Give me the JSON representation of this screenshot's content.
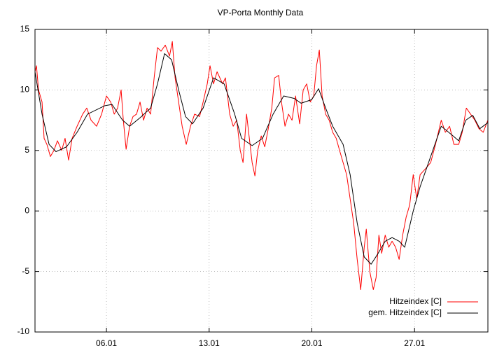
{
  "chart_data": {
    "type": "line",
    "title": "VP-Porta Monthly Data",
    "xlim": [
      1.13,
      32
    ],
    "ylim": [
      -10,
      15
    ],
    "xticks": [
      {
        "value": 6,
        "label": "06.01"
      },
      {
        "value": 13,
        "label": "13.01"
      },
      {
        "value": 20,
        "label": "20.01"
      },
      {
        "value": 27,
        "label": "27.01"
      }
    ],
    "yticks": [
      -10,
      -5,
      0,
      5,
      10,
      15
    ],
    "grid": true,
    "legend": "lower right",
    "series": [
      {
        "name": "Hitzeindex [C]",
        "color": "#ff0000",
        "x": [
          1.13,
          1.23,
          1.37,
          1.61,
          1.75,
          1.94,
          2.18,
          2.42,
          2.66,
          2.95,
          3.18,
          3.42,
          3.66,
          4.0,
          4.38,
          4.66,
          4.95,
          5.33,
          5.67,
          6.0,
          6.29,
          6.53,
          6.76,
          7.0,
          7.15,
          7.34,
          7.58,
          7.81,
          8.05,
          8.29,
          8.53,
          8.77,
          9.01,
          9.25,
          9.48,
          9.72,
          10.01,
          10.3,
          10.49,
          10.68,
          10.92,
          11.16,
          11.44,
          11.73,
          12.01,
          12.35,
          12.59,
          12.87,
          13.06,
          13.3,
          13.54,
          13.92,
          14.11,
          14.4,
          14.64,
          14.88,
          15.12,
          15.31,
          15.55,
          15.74,
          15.93,
          16.12,
          16.31,
          16.55,
          16.79,
          17.03,
          17.27,
          17.46,
          17.74,
          17.93,
          18.17,
          18.41,
          18.65,
          18.89,
          19.17,
          19.41,
          19.65,
          19.89,
          20.13,
          20.32,
          20.51,
          20.7,
          20.94,
          21.18,
          21.42,
          21.66,
          21.89,
          22.13,
          22.37,
          22.61,
          22.85,
          23.09,
          23.33,
          23.57,
          23.71,
          23.95,
          24.19,
          24.38,
          24.57,
          24.76,
          25.0,
          25.24,
          25.47,
          25.71,
          25.95,
          26.19,
          26.43,
          26.67,
          26.91,
          27.15,
          27.38,
          27.76,
          28.1,
          28.43,
          28.82,
          29.1,
          29.39,
          29.68,
          30.01,
          30.25,
          30.53,
          30.82,
          31.11,
          31.39,
          31.68,
          32.0
        ],
        "values": [
          11.5,
          12,
          10,
          9,
          6,
          5.5,
          4.5,
          5,
          5.8,
          5,
          6,
          4.2,
          6,
          7,
          8,
          8.5,
          7.5,
          7,
          8,
          9.5,
          9,
          8,
          8.5,
          10,
          7.5,
          5.1,
          7,
          7.8,
          8,
          9,
          7.5,
          8.5,
          8,
          11,
          13.5,
          13.2,
          13.7,
          12.8,
          14,
          11,
          9,
          7,
          5.5,
          7,
          8,
          7.8,
          9,
          10.5,
          12,
          10.5,
          11.5,
          10.5,
          11,
          8,
          7,
          7.5,
          5,
          4,
          8,
          6,
          4,
          2.9,
          5,
          6.2,
          5.3,
          6.8,
          8.5,
          11,
          11.2,
          9,
          7,
          8,
          7.5,
          9.5,
          7.2,
          10,
          10.5,
          9,
          9.5,
          12,
          13.3,
          9.5,
          8,
          7.5,
          6.5,
          6,
          5,
          4,
          3,
          1,
          -1,
          -4,
          -6.5,
          -3,
          -1.5,
          -5,
          -6.5,
          -5.5,
          -2,
          -3.5,
          -2,
          -3,
          -2.5,
          -3,
          -4,
          -2,
          -0.5,
          0.5,
          3,
          1,
          3,
          3.5,
          4,
          5.5,
          7.5,
          6.5,
          7,
          5.5,
          5.5,
          6.5,
          8.5,
          8,
          7.5,
          6.8,
          6.5,
          7.5
        ]
      },
      {
        "name": "gem. Hitzeindex [C]",
        "color": "#000000",
        "x": [
          1.13,
          1.61,
          2.09,
          2.56,
          3.28,
          4.0,
          4.71,
          5.9,
          6.38,
          7.1,
          7.58,
          8.29,
          9.01,
          9.48,
          9.96,
          10.44,
          10.92,
          11.39,
          11.87,
          12.59,
          13.3,
          14.02,
          14.74,
          15.21,
          15.93,
          16.64,
          17.36,
          18.08,
          18.79,
          19.27,
          19.99,
          20.46,
          20.94,
          21.42,
          22.13,
          22.61,
          23.09,
          23.57,
          24.04,
          24.52,
          25.0,
          25.47,
          25.95,
          26.33,
          26.91,
          27.38,
          28.1,
          28.82,
          29.53,
          30.01,
          30.49,
          30.97,
          31.45,
          32.0
        ],
        "values": [
          11.5,
          8,
          5.5,
          4.9,
          5.3,
          6.5,
          8,
          8.7,
          8.8,
          7.5,
          7.0,
          7.7,
          8.5,
          10.5,
          13.0,
          12.5,
          10,
          7.8,
          7.2,
          8.5,
          11,
          10.5,
          8,
          6,
          5.4,
          6,
          8,
          9.5,
          9.3,
          8.9,
          9.2,
          10.1,
          8.5,
          7,
          5.5,
          3,
          -1,
          -3.8,
          -4.4,
          -3.5,
          -2.5,
          -2.2,
          -2.5,
          -3,
          0,
          2,
          4.5,
          7,
          6.3,
          5.8,
          7.5,
          7.9,
          6.8,
          7.3
        ]
      }
    ]
  }
}
